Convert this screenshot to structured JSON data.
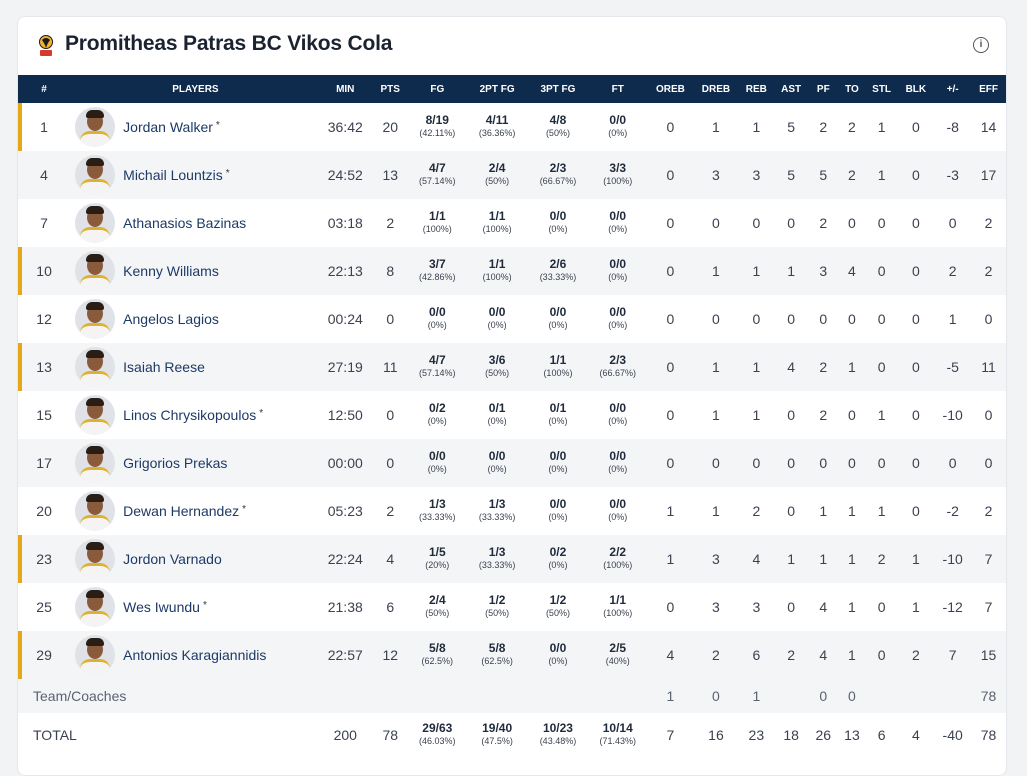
{
  "team": {
    "name": "Promitheas Patras BC Vikos Cola",
    "logo_icon": "team-logo-icon",
    "info_icon": "info-icon",
    "info_glyph": "i"
  },
  "colors": {
    "header_bg": "#0e2a4d",
    "starter_marker": "#e6a817",
    "name_link": "#1d3a66"
  },
  "columns": [
    "#",
    "PLAYERS",
    "MIN",
    "PTS",
    "FG",
    "2PT FG",
    "3PT FG",
    "FT",
    "OREB",
    "DREB",
    "REB",
    "AST",
    "PF",
    "TO",
    "STL",
    "BLK",
    "+/-",
    "EFF"
  ],
  "star_mark": "*",
  "players": [
    {
      "num": "1",
      "name": "Jordan Walker",
      "star": true,
      "starter": true,
      "min": "36:42",
      "pts": "20",
      "fg": "8/19",
      "fg_pct": "(42.11%)",
      "fg2": "4/11",
      "fg2_pct": "(36.36%)",
      "fg3": "4/8",
      "fg3_pct": "(50%)",
      "ft": "0/0",
      "ft_pct": "(0%)",
      "oreb": "0",
      "dreb": "1",
      "reb": "1",
      "ast": "5",
      "pf": "2",
      "to": "2",
      "stl": "1",
      "blk": "0",
      "pm": "-8",
      "eff": "14"
    },
    {
      "num": "4",
      "name": "Michail Lountzis",
      "star": true,
      "starter": false,
      "min": "24:52",
      "pts": "13",
      "fg": "4/7",
      "fg_pct": "(57.14%)",
      "fg2": "2/4",
      "fg2_pct": "(50%)",
      "fg3": "2/3",
      "fg3_pct": "(66.67%)",
      "ft": "3/3",
      "ft_pct": "(100%)",
      "oreb": "0",
      "dreb": "3",
      "reb": "3",
      "ast": "5",
      "pf": "5",
      "to": "2",
      "stl": "1",
      "blk": "0",
      "pm": "-3",
      "eff": "17"
    },
    {
      "num": "7",
      "name": "Athanasios Bazinas",
      "star": false,
      "starter": false,
      "min": "03:18",
      "pts": "2",
      "fg": "1/1",
      "fg_pct": "(100%)",
      "fg2": "1/1",
      "fg2_pct": "(100%)",
      "fg3": "0/0",
      "fg3_pct": "(0%)",
      "ft": "0/0",
      "ft_pct": "(0%)",
      "oreb": "0",
      "dreb": "0",
      "reb": "0",
      "ast": "0",
      "pf": "2",
      "to": "0",
      "stl": "0",
      "blk": "0",
      "pm": "0",
      "eff": "2"
    },
    {
      "num": "10",
      "name": "Kenny Williams",
      "star": false,
      "starter": true,
      "min": "22:13",
      "pts": "8",
      "fg": "3/7",
      "fg_pct": "(42.86%)",
      "fg2": "1/1",
      "fg2_pct": "(100%)",
      "fg3": "2/6",
      "fg3_pct": "(33.33%)",
      "ft": "0/0",
      "ft_pct": "(0%)",
      "oreb": "0",
      "dreb": "1",
      "reb": "1",
      "ast": "1",
      "pf": "3",
      "to": "4",
      "stl": "0",
      "blk": "0",
      "pm": "2",
      "eff": "2"
    },
    {
      "num": "12",
      "name": "Angelos Lagios",
      "star": false,
      "starter": false,
      "min": "00:24",
      "pts": "0",
      "fg": "0/0",
      "fg_pct": "(0%)",
      "fg2": "0/0",
      "fg2_pct": "(0%)",
      "fg3": "0/0",
      "fg3_pct": "(0%)",
      "ft": "0/0",
      "ft_pct": "(0%)",
      "oreb": "0",
      "dreb": "0",
      "reb": "0",
      "ast": "0",
      "pf": "0",
      "to": "0",
      "stl": "0",
      "blk": "0",
      "pm": "1",
      "eff": "0"
    },
    {
      "num": "13",
      "name": "Isaiah Reese",
      "star": false,
      "starter": true,
      "min": "27:19",
      "pts": "11",
      "fg": "4/7",
      "fg_pct": "(57.14%)",
      "fg2": "3/6",
      "fg2_pct": "(50%)",
      "fg3": "1/1",
      "fg3_pct": "(100%)",
      "ft": "2/3",
      "ft_pct": "(66.67%)",
      "oreb": "0",
      "dreb": "1",
      "reb": "1",
      "ast": "4",
      "pf": "2",
      "to": "1",
      "stl": "0",
      "blk": "0",
      "pm": "-5",
      "eff": "11"
    },
    {
      "num": "15",
      "name": "Linos Chrysikopoulos",
      "star": true,
      "starter": false,
      "min": "12:50",
      "pts": "0",
      "fg": "0/2",
      "fg_pct": "(0%)",
      "fg2": "0/1",
      "fg2_pct": "(0%)",
      "fg3": "0/1",
      "fg3_pct": "(0%)",
      "ft": "0/0",
      "ft_pct": "(0%)",
      "oreb": "0",
      "dreb": "1",
      "reb": "1",
      "ast": "0",
      "pf": "2",
      "to": "0",
      "stl": "1",
      "blk": "0",
      "pm": "-10",
      "eff": "0"
    },
    {
      "num": "17",
      "name": "Grigorios Prekas",
      "star": false,
      "starter": false,
      "min": "00:00",
      "pts": "0",
      "fg": "0/0",
      "fg_pct": "(0%)",
      "fg2": "0/0",
      "fg2_pct": "(0%)",
      "fg3": "0/0",
      "fg3_pct": "(0%)",
      "ft": "0/0",
      "ft_pct": "(0%)",
      "oreb": "0",
      "dreb": "0",
      "reb": "0",
      "ast": "0",
      "pf": "0",
      "to": "0",
      "stl": "0",
      "blk": "0",
      "pm": "0",
      "eff": "0"
    },
    {
      "num": "20",
      "name": "Dewan Hernandez",
      "star": true,
      "starter": false,
      "min": "05:23",
      "pts": "2",
      "fg": "1/3",
      "fg_pct": "(33.33%)",
      "fg2": "1/3",
      "fg2_pct": "(33.33%)",
      "fg3": "0/0",
      "fg3_pct": "(0%)",
      "ft": "0/0",
      "ft_pct": "(0%)",
      "oreb": "1",
      "dreb": "1",
      "reb": "2",
      "ast": "0",
      "pf": "1",
      "to": "1",
      "stl": "1",
      "blk": "0",
      "pm": "-2",
      "eff": "2"
    },
    {
      "num": "23",
      "name": "Jordon Varnado",
      "star": false,
      "starter": true,
      "min": "22:24",
      "pts": "4",
      "fg": "1/5",
      "fg_pct": "(20%)",
      "fg2": "1/3",
      "fg2_pct": "(33.33%)",
      "fg3": "0/2",
      "fg3_pct": "(0%)",
      "ft": "2/2",
      "ft_pct": "(100%)",
      "oreb": "1",
      "dreb": "3",
      "reb": "4",
      "ast": "1",
      "pf": "1",
      "to": "1",
      "stl": "2",
      "blk": "1",
      "pm": "-10",
      "eff": "7"
    },
    {
      "num": "25",
      "name": "Wes Iwundu",
      "star": true,
      "starter": false,
      "min": "21:38",
      "pts": "6",
      "fg": "2/4",
      "fg_pct": "(50%)",
      "fg2": "1/2",
      "fg2_pct": "(50%)",
      "fg3": "1/2",
      "fg3_pct": "(50%)",
      "ft": "1/1",
      "ft_pct": "(100%)",
      "oreb": "0",
      "dreb": "3",
      "reb": "3",
      "ast": "0",
      "pf": "4",
      "to": "1",
      "stl": "0",
      "blk": "1",
      "pm": "-12",
      "eff": "7"
    },
    {
      "num": "29",
      "name": "Antonios Karagiannidis",
      "star": false,
      "starter": true,
      "min": "22:57",
      "pts": "12",
      "fg": "5/8",
      "fg_pct": "(62.5%)",
      "fg2": "5/8",
      "fg2_pct": "(62.5%)",
      "fg3": "0/0",
      "fg3_pct": "(0%)",
      "ft": "2/5",
      "ft_pct": "(40%)",
      "oreb": "4",
      "dreb": "2",
      "reb": "6",
      "ast": "2",
      "pf": "4",
      "to": "1",
      "stl": "0",
      "blk": "2",
      "pm": "7",
      "eff": "15"
    }
  ],
  "team_row": {
    "label": "Team/Coaches",
    "oreb": "1",
    "dreb": "0",
    "reb": "1",
    "ast": "",
    "pf": "0",
    "to": "0",
    "stl": "",
    "blk": "",
    "pm": "",
    "eff": "78"
  },
  "total_row": {
    "label": "TOTAL",
    "min": "200",
    "pts": "78",
    "fg": "29/63",
    "fg_pct": "(46.03%)",
    "fg2": "19/40",
    "fg2_pct": "(47.5%)",
    "fg3": "10/23",
    "fg3_pct": "(43.48%)",
    "ft": "10/14",
    "ft_pct": "(71.43%)",
    "oreb": "7",
    "dreb": "16",
    "reb": "23",
    "ast": "18",
    "pf": "26",
    "to": "13",
    "stl": "6",
    "blk": "4",
    "pm": "-40",
    "eff": "78"
  }
}
